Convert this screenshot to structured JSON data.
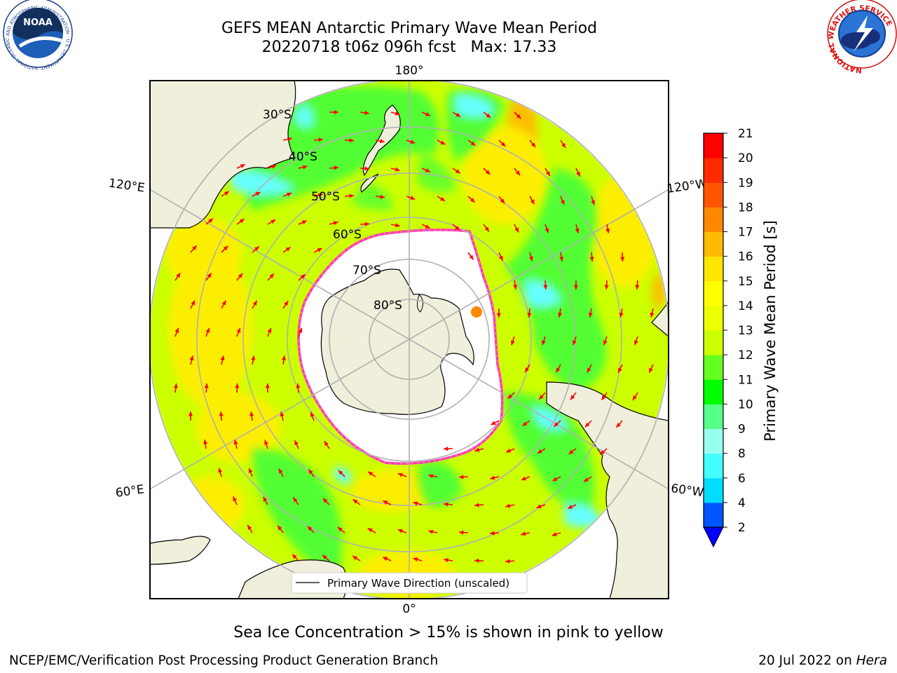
{
  "header": {
    "title_line1": "GEFS MEAN Antarctic Primary Wave Mean Period",
    "title_line2": "20220718 t06z 096h fcst   Max: 17.33"
  },
  "logos": {
    "noaa": {
      "text": "NOAA",
      "ring_text": "NATIONAL OCEANIC AND ATMOSPHERIC ADMINISTRATION · U.S. DEPARTMENT OF COMMERCE"
    },
    "nws": {
      "ring_text": "NATIONAL WEATHER SERVICE"
    }
  },
  "map": {
    "projection": "south-polar-stereographic",
    "longitude_labels": [
      "180°",
      "120°E",
      "120°W",
      "60°E",
      "60°W",
      "0°"
    ],
    "latitude_labels": [
      "30°S",
      "40°S",
      "50°S",
      "60°S",
      "70°S",
      "80°S"
    ],
    "legend_label": "Primary Wave Direction (unscaled)",
    "colors": {
      "ocean_base": "#ccff00",
      "ocean_high": "#ffee00",
      "green": "#3dff3d",
      "cyan": "#66ffff",
      "land": "#efefdc",
      "ice": "#ffffff",
      "ice_edge": "#ff33cc",
      "arrow": "#ff0000"
    }
  },
  "colorbar": {
    "label": "Primary Wave Mean Period [s]",
    "ticks": [
      "2",
      "4",
      "6",
      "8",
      "9",
      "10",
      "11",
      "12",
      "13",
      "14",
      "15",
      "16",
      "17",
      "18",
      "19",
      "20",
      "21"
    ],
    "colors": [
      "#0055ff",
      "#00ddff",
      "#44ffff",
      "#99ffee",
      "#55ff88",
      "#00ff00",
      "#66ff22",
      "#ccff00",
      "#eeff00",
      "#ffff00",
      "#ffe600",
      "#ffbb00",
      "#ff8800",
      "#ff5500",
      "#ff2a00",
      "#ff0000"
    ],
    "extend_color": "#0000ff"
  },
  "footer": {
    "caption": "Sea Ice Concentration > 15% is shown in pink to yellow",
    "credit": "NCEP/EMC/Verification Post Processing Product Generation Branch",
    "date": "20 Jul 2022 on",
    "machine": "Hera"
  }
}
